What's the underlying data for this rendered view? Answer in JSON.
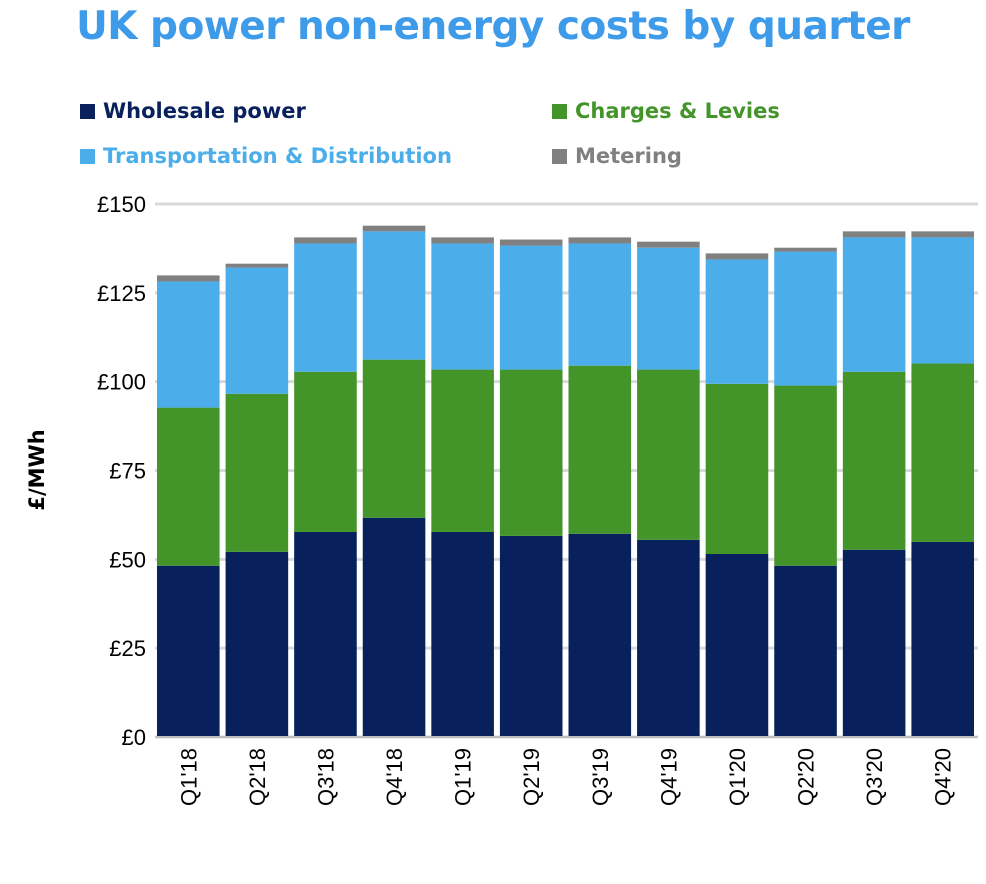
{
  "chart_data": {
    "type": "bar",
    "stacked": true,
    "title": "UK power non-energy costs by quarter",
    "xlabel": "",
    "ylabel": "£/MWh",
    "ylim": [
      0,
      150
    ],
    "yticks": [
      0,
      25,
      50,
      75,
      100,
      125,
      150
    ],
    "ytick_labels": [
      "£0",
      "£25",
      "£50",
      "£75",
      "£100",
      "£125",
      "£150"
    ],
    "grid": true,
    "legend_position": "top",
    "categories": [
      "Q1'18",
      "Q2'18",
      "Q3'18",
      "Q4'18",
      "Q1'19",
      "Q2'19",
      "Q3'19",
      "Q4'19",
      "Q1'20",
      "Q2'20",
      "Q3'20",
      "Q4'20"
    ],
    "series": [
      {
        "name": "Wholesale power",
        "color": "#08215c",
        "values": [
          48.2,
          52.1,
          57.7,
          61.7,
          57.7,
          56.6,
          57.2,
          55.5,
          51.5,
          48.2,
          52.7,
          54.9
        ]
      },
      {
        "name": "Charges & Levies",
        "color": "#43952a",
        "values": [
          44.5,
          44.5,
          45.1,
          44.5,
          45.7,
          46.8,
          47.3,
          47.9,
          47.9,
          50.7,
          50.1,
          50.2
        ]
      },
      {
        "name": "Transportation & Distribution",
        "color": "#4baeea",
        "values": [
          35.5,
          35.5,
          36.1,
          36.1,
          35.5,
          34.9,
          34.4,
          34.3,
          35.0,
          37.7,
          37.8,
          35.5
        ]
      },
      {
        "name": "Metering",
        "color": "#808080",
        "values": [
          1.7,
          1.1,
          1.7,
          1.6,
          1.7,
          1.7,
          1.7,
          1.7,
          1.7,
          1.1,
          1.7,
          1.7
        ]
      }
    ]
  }
}
